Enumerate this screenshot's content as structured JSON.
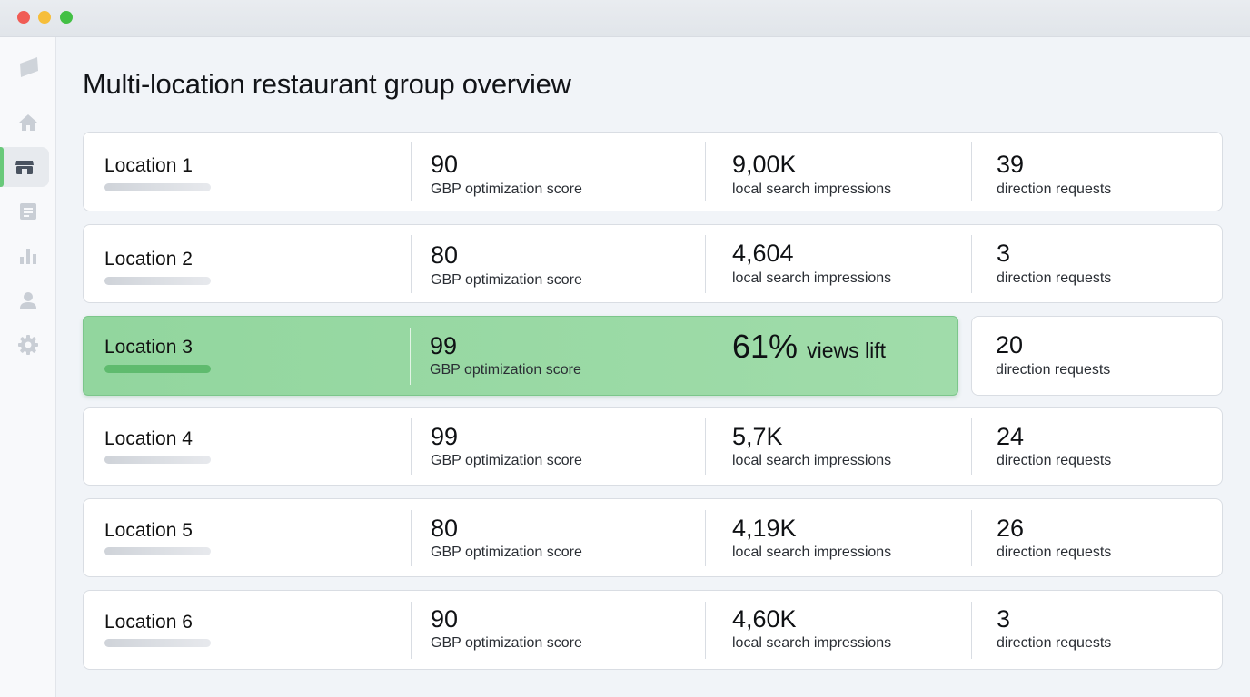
{
  "window": {
    "title": ""
  },
  "sidebar": {
    "logo": "leaf-logo-icon",
    "items": [
      {
        "icon": "home-icon",
        "active": false
      },
      {
        "icon": "store-icon",
        "active": true
      },
      {
        "icon": "document-icon",
        "active": false
      },
      {
        "icon": "bar-chart-icon",
        "active": false
      },
      {
        "icon": "user-icon",
        "active": false
      },
      {
        "icon": "gear-icon",
        "active": false
      }
    ]
  },
  "page": {
    "title": "Multi-location restaurant group overview"
  },
  "labels": {
    "score": "GBP optimization score",
    "impressions": "local search impressions",
    "directions": "direction requests"
  },
  "locations": [
    {
      "name": "Location 1",
      "score": "90",
      "impressions": "9,00K",
      "directions": "39"
    },
    {
      "name": "Location 2",
      "score": "80",
      "impressions": "4,604",
      "directions": "3"
    },
    {
      "name": "Location 3",
      "score": "99",
      "lift_value": "61%",
      "lift_label": "views lift",
      "directions": "20",
      "highlighted": true
    },
    {
      "name": "Location 4",
      "score": "99",
      "impressions": "5,7K",
      "directions": "24"
    },
    {
      "name": "Location 5",
      "score": "80",
      "impressions": "4,19K",
      "directions": "26"
    },
    {
      "name": "Location 6",
      "score": "90",
      "impressions": "4,60K",
      "directions": "3"
    }
  ],
  "colors": {
    "highlight": "#96d8a2",
    "accent": "#69c97a",
    "card_border": "#d9dde3"
  }
}
